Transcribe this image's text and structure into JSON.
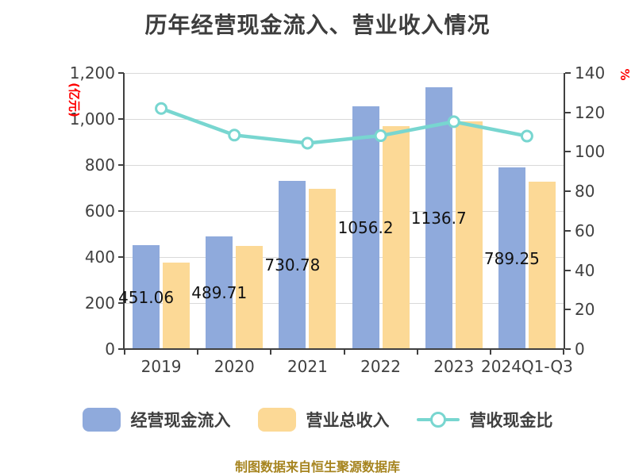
{
  "title": "历年经营现金流入、营业收入情况",
  "footer": "制图数据来自恒生聚源数据库",
  "axes": {
    "left_unit": "(亿元)",
    "right_unit": "%",
    "left_ticks": [
      "0",
      "200",
      "400",
      "600",
      "800",
      "1,000",
      "1,200"
    ],
    "right_ticks": [
      "0",
      "20",
      "40",
      "60",
      "80",
      "100",
      "120",
      "140"
    ]
  },
  "legend": [
    {
      "label": "经营现金流入",
      "type": "bar",
      "color": "#8faadc"
    },
    {
      "label": "营业总收入",
      "type": "bar",
      "color": "#fcd996"
    },
    {
      "label": "营收现金比",
      "type": "line",
      "color": "#78d6d0"
    }
  ],
  "chart_data": {
    "type": "bar",
    "subtype": "grouped bars with overlay line (dual axis)",
    "categories": [
      "2019",
      "2020",
      "2021",
      "2022",
      "2023",
      "2024Q1-Q3"
    ],
    "series": [
      {
        "name": "经营现金流入",
        "type": "bar",
        "axis": "left",
        "unit": "亿元",
        "color": "#8faadc",
        "values": [
          451.06,
          489.71,
          730.78,
          1056.2,
          1136.7,
          789.25
        ],
        "labels": [
          "451.06",
          "489.71",
          "730.78",
          "1056.2",
          "1136.7",
          "789.25"
        ]
      },
      {
        "name": "营业总收入",
        "type": "bar",
        "axis": "left",
        "unit": "亿元",
        "color": "#fcd996",
        "values": [
          376,
          450,
          697,
          970,
          988,
          728
        ]
      },
      {
        "name": "营收现金比",
        "type": "line",
        "axis": "right",
        "unit": "%",
        "color": "#78d6d0",
        "marker": "circle-white-fill",
        "values": [
          122.0,
          108.5,
          104.4,
          108.2,
          115.3,
          108.0
        ]
      }
    ],
    "left_axis": {
      "label": "(亿元)",
      "min": 0,
      "max": 1200,
      "step": 200
    },
    "right_axis": {
      "label": "%",
      "min": 0,
      "max": 140,
      "step": 20
    },
    "grid": true,
    "legend_position": "bottom",
    "title": "历年经营现金流入、营业收入情况"
  }
}
